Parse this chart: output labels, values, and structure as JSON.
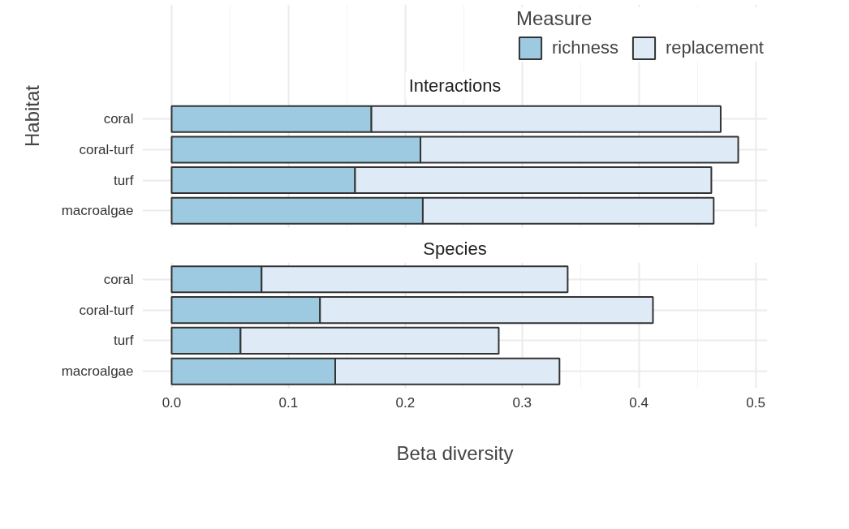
{
  "chart_data": [
    {
      "type": "bar",
      "orientation": "horizontal",
      "stacked": true,
      "title": "Interactions",
      "ylabel": "Habitat",
      "legend_title": "Measure",
      "legend": "top right",
      "categories": [
        "coral",
        "coral-turf",
        "turf",
        "macroalgae"
      ],
      "series": [
        {
          "name": "richness",
          "color": "#9ecae1",
          "values": [
            0.171,
            0.213,
            0.157,
            0.215
          ]
        },
        {
          "name": "replacement",
          "color": "#deebf7",
          "values": [
            0.299,
            0.272,
            0.305,
            0.249
          ]
        }
      ],
      "xlim": [
        -0.025,
        0.51
      ],
      "xticks": [
        0.0,
        0.1,
        0.2,
        0.3,
        0.4,
        0.5
      ],
      "tick_labels": "y",
      "grid": true
    },
    {
      "type": "bar",
      "orientation": "horizontal",
      "stacked": true,
      "title": "Species",
      "xlabel": "Beta diversity",
      "categories": [
        "coral",
        "coral-turf",
        "turf",
        "macroalgae"
      ],
      "series": [
        {
          "color": "#9ecae1",
          "values": [
            0.077,
            0.127,
            0.059,
            0.14
          ]
        },
        {
          "color": "#deebf7",
          "values": [
            0.262,
            0.285,
            0.221,
            0.192
          ]
        }
      ],
      "xlim": [
        -0.025,
        0.51
      ],
      "xticks": [
        {
          "value": 0.0,
          "label": "0.0"
        },
        0.1,
        0.2,
        0.3,
        0.4,
        0.5
      ],
      "grid": true
    }
  ]
}
